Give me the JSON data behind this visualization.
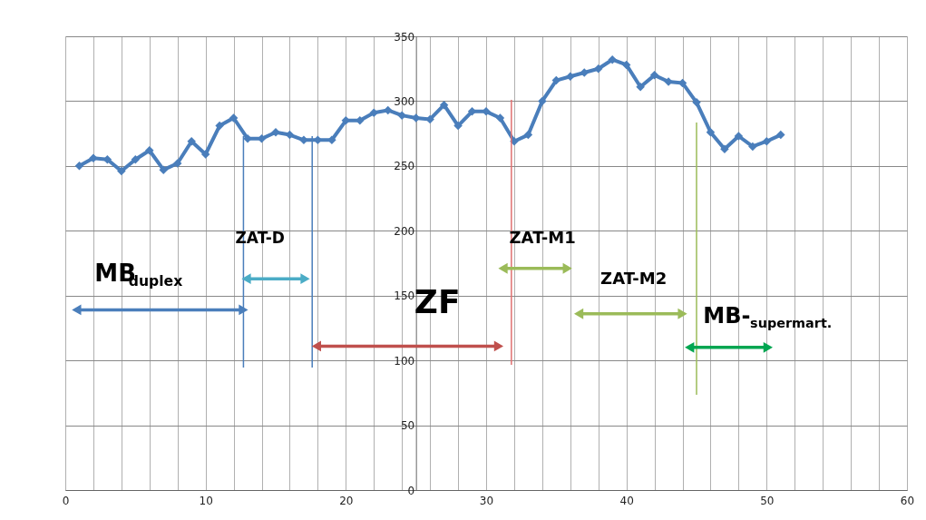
{
  "chart_data": {
    "type": "line",
    "x": [
      1,
      2,
      3,
      4,
      5,
      6,
      7,
      8,
      9,
      10,
      11,
      12,
      13,
      14,
      15,
      16,
      17,
      18,
      19,
      20,
      21,
      22,
      23,
      24,
      25,
      26,
      27,
      28,
      29,
      30,
      31,
      32,
      33,
      34,
      35,
      36,
      37,
      38,
      39,
      40,
      41,
      42,
      43,
      44,
      45,
      46,
      47,
      48,
      49,
      50,
      51
    ],
    "series": [
      {
        "color": "#4a7ebb",
        "values": [
          250,
          256,
          255,
          246,
          255,
          262,
          247,
          252,
          269,
          259,
          281,
          287,
          271,
          271,
          276,
          274,
          270,
          270,
          270,
          285,
          285,
          291,
          293,
          289,
          287,
          286,
          297,
          281,
          292,
          292,
          287,
          269,
          274,
          300,
          316,
          319,
          322,
          325,
          332,
          328,
          311,
          320,
          315,
          314,
          299,
          276,
          263,
          273,
          265,
          269,
          274
        ]
      }
    ],
    "xlim": [
      0,
      60
    ],
    "ylim": [
      0,
      350
    ],
    "xticks": [
      0,
      {
        "value": 2,
        "label": null
      },
      {
        "value": 4,
        "label": null
      },
      {
        "value": 6,
        "label": null
      },
      {
        "value": 8,
        "label": null
      },
      10,
      {
        "value": 12,
        "label": null
      },
      {
        "value": 14,
        "label": null
      },
      {
        "value": 16,
        "label": null
      },
      {
        "value": 18,
        "label": null
      },
      20,
      {
        "value": 22,
        "label": null
      },
      {
        "value": 24,
        "label": null
      },
      {
        "value": 26,
        "label": null
      },
      {
        "value": 28,
        "label": null
      },
      30,
      {
        "value": 32,
        "label": null
      },
      {
        "value": 34,
        "label": null
      },
      {
        "value": 36,
        "label": null
      },
      {
        "value": 38,
        "label": null
      },
      40,
      {
        "value": 42,
        "label": null
      },
      {
        "value": 44,
        "label": null
      },
      {
        "value": 46,
        "label": null
      },
      {
        "value": 48,
        "label": null
      },
      50,
      {
        "value": 52,
        "label": null
      },
      {
        "value": 54,
        "label": null
      },
      {
        "value": 56,
        "label": null
      },
      {
        "value": 58,
        "label": null
      },
      60
    ],
    "yticks": [
      0,
      50,
      100,
      150,
      200,
      250,
      300,
      350
    ],
    "grid": true,
    "marker": "diamond",
    "line_style": "solid",
    "ref_lines": [
      {
        "axis": "x",
        "value": 12.7,
        "color": "#4a7ebb"
      },
      {
        "axis": "x",
        "value": 17.6,
        "color": "#4a7ebb"
      },
      {
        "axis": "x",
        "value": 31.8,
        "color": "#e07070"
      },
      {
        "axis": "x",
        "value": 45,
        "color": "#9bbb59"
      }
    ],
    "annotations": [
      "MB$_{duplex}$",
      "ZAT-D",
      "ZF",
      "ZAT-M1",
      "ZAT-M2",
      "MB-$_{supermart.}$"
    ]
  }
}
